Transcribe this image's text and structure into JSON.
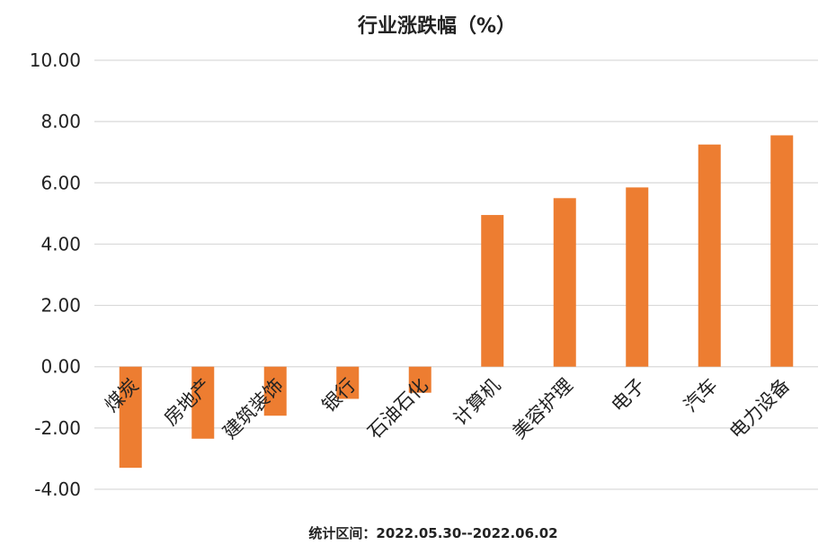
{
  "chart_data": {
    "type": "bar",
    "title": "行业涨跌幅（%）",
    "categories": [
      "煤炭",
      "房地产",
      "建筑装饰",
      "银行",
      "石油石化",
      "计算机",
      "美容护理",
      "电子",
      "汽车",
      "电力设备"
    ],
    "values": [
      -3.3,
      -2.35,
      -1.6,
      -1.05,
      -0.85,
      4.95,
      5.5,
      5.85,
      7.25,
      7.55
    ],
    "ylim": [
      -4,
      10
    ],
    "yticks": [
      -4,
      -2,
      0,
      2,
      4,
      6,
      8,
      10
    ],
    "ytick_labels": [
      "-4.00",
      "-2.00",
      "0.00",
      "2.00",
      "4.00",
      "6.00",
      "8.00",
      "10.00"
    ],
    "xlabel": "",
    "ylabel": "",
    "grid": true,
    "legend": "none",
    "bar_color": "#ED7D31",
    "footnote": "统计区间：2022.05.30--2022.06.02"
  }
}
